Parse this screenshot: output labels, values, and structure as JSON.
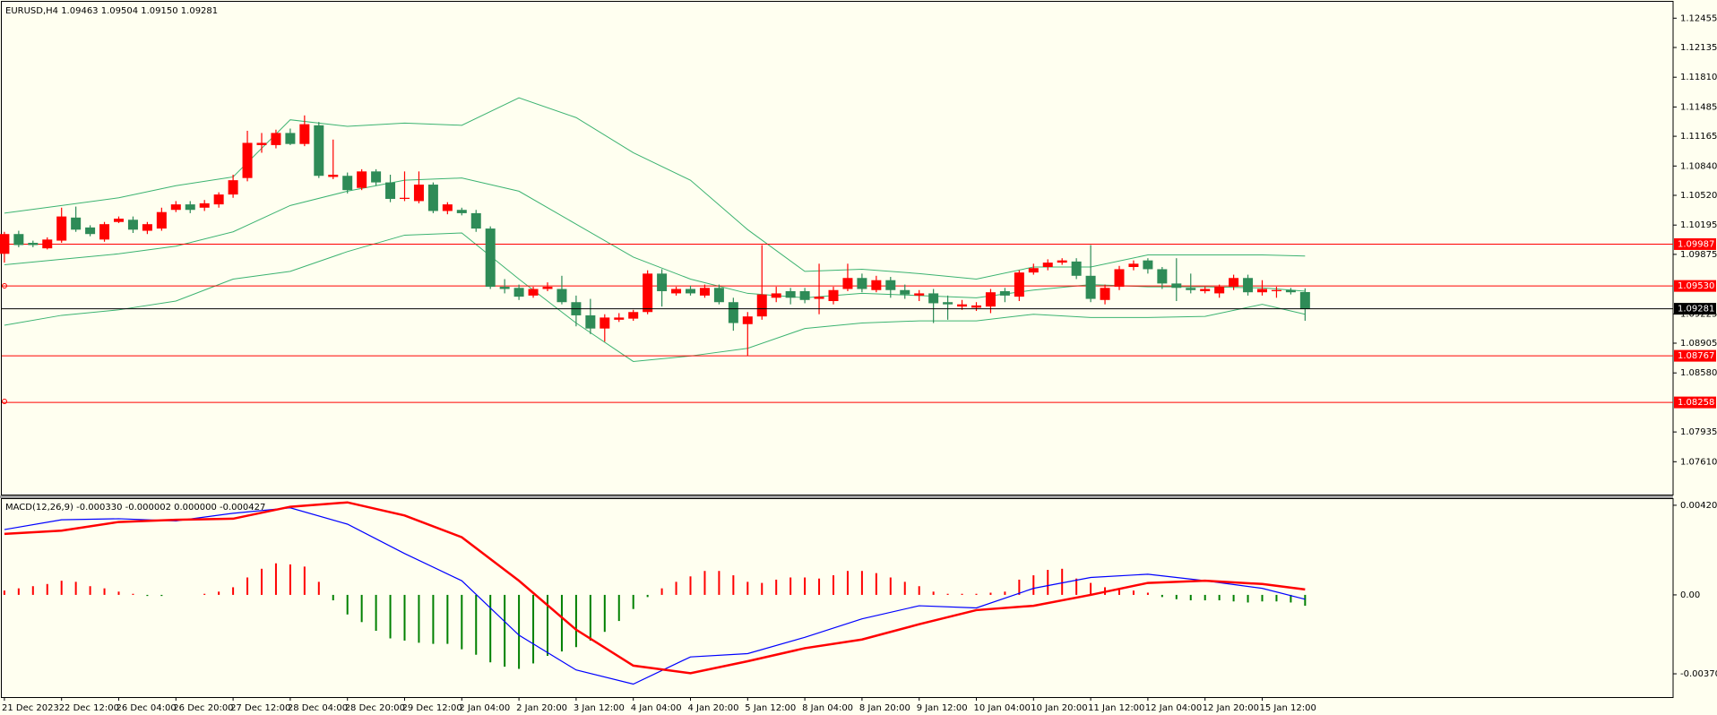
{
  "chart_data": [
    {
      "type": "candlestick",
      "title": "EURUSD,H4  1.09463 1.09504 1.09150 1.09281",
      "open": [
        1.09881,
        1.10097,
        1.10001,
        1.09941,
        1.10025,
        1.10277,
        1.10169,
        1.10037,
        1.10229,
        1.10253,
        1.10133,
        1.10157,
        1.10361,
        1.10421,
        1.10385,
        1.10421,
        1.10529,
        1.10709,
        1.11069,
        1.11069,
        1.11201,
        1.11081,
        1.11285,
        1.10721,
        1.10733,
        1.10601,
        1.10781,
        1.10661,
        1.10481,
        1.10457,
        1.10637,
        1.10349,
        1.10361,
        1.10325,
        1.10157,
        1.09521,
        1.09509,
        1.09425,
        1.09497,
        1.09497,
        1.09353,
        1.09209,
        1.09065,
        1.09161,
        1.09173,
        1.09245,
        1.09665,
        1.09449,
        1.09497,
        1.09425,
        1.09509,
        1.09353,
        1.09113,
        1.09197,
        1.09401,
        1.09473,
        1.09473,
        1.09389,
        1.09365,
        1.09497,
        1.09617,
        1.09485,
        1.09593,
        1.09485,
        1.09425,
        1.09449,
        1.09353,
        1.09305,
        1.09293,
        1.09305,
        1.09473,
        1.09413,
        1.09677,
        1.09737,
        1.09785,
        1.09797,
        1.09641,
        1.09377,
        1.09521,
        1.09737,
        1.09809,
        1.09713,
        1.09557,
        1.09509,
        1.09473,
        1.09449,
        1.09521,
        1.09617,
        1.09461,
        1.09473,
        1.09485,
        1.09463
      ],
      "high": [
        1.10121,
        1.10133,
        1.10025,
        1.10061,
        1.10385,
        1.10397,
        1.10193,
        1.10229,
        1.10289,
        1.10289,
        1.10229,
        1.10385,
        1.10457,
        1.10457,
        1.10469,
        1.10553,
        1.10745,
        1.11225,
        1.11201,
        1.11237,
        1.11249,
        1.11393,
        1.11321,
        1.11129,
        1.10769,
        1.10805,
        1.10805,
        1.10745,
        1.10781,
        1.10781,
        1.10661,
        1.10445,
        1.10385,
        1.10361,
        1.10181,
        1.09605,
        1.09545,
        1.09521,
        1.09569,
        1.09641,
        1.09425,
        1.09389,
        1.09221,
        1.09233,
        1.09269,
        1.09701,
        1.09713,
        1.09521,
        1.09533,
        1.09545,
        1.09545,
        1.09401,
        1.09245,
        1.09977,
        1.09521,
        1.09509,
        1.09509,
        1.09773,
        1.09521,
        1.09773,
        1.09665,
        1.09641,
        1.09629,
        1.09545,
        1.09485,
        1.09497,
        1.09425,
        1.09377,
        1.09353,
        1.09497,
        1.09509,
        1.09701,
        1.09773,
        1.09821,
        1.09833,
        1.09833,
        1.09977,
        1.09545,
        1.09749,
        1.09809,
        1.09833,
        1.09737,
        1.09833,
        1.09665,
        1.09521,
        1.09545,
        1.09653,
        1.09653,
        1.09593,
        1.09521,
        1.09509,
        1.09504
      ],
      "low": [
        1.09785,
        1.09953,
        1.09953,
        1.09929,
        1.10001,
        1.10121,
        1.10073,
        1.10013,
        1.10217,
        1.10109,
        1.10097,
        1.10133,
        1.10337,
        1.10325,
        1.10349,
        1.10385,
        1.10493,
        1.10673,
        1.10985,
        1.11033,
        1.11069,
        1.11057,
        1.10709,
        1.10697,
        1.10541,
        1.10577,
        1.10625,
        1.10445,
        1.10457,
        1.10433,
        1.10325,
        1.10313,
        1.10301,
        1.10121,
        1.09497,
        1.09449,
        1.09377,
        1.09401,
        1.09473,
        1.09329,
        1.09089,
        1.09005,
        1.08921,
        1.09137,
        1.09149,
        1.09221,
        1.09305,
        1.09425,
        1.09425,
        1.09401,
        1.09329,
        1.09041,
        1.08765,
        1.09161,
        1.09353,
        1.09329,
        1.09341,
        1.09221,
        1.09329,
        1.09473,
        1.09461,
        1.09461,
        1.09401,
        1.09389,
        1.09365,
        1.09125,
        1.09161,
        1.09269,
        1.09257,
        1.09233,
        1.09353,
        1.09365,
        1.09653,
        1.09701,
        1.09761,
        1.09605,
        1.09353,
        1.09329,
        1.09485,
        1.09701,
        1.09665,
        1.09497,
        1.09365,
        1.09449,
        1.09449,
        1.09401,
        1.09485,
        1.09425,
        1.09425,
        1.09401,
        1.09437,
        1.0915
      ],
      "close": [
        1.10097,
        1.09977,
        1.09977,
        1.10037,
        1.10289,
        1.10145,
        1.10097,
        1.10205,
        1.10265,
        1.10145,
        1.10205,
        1.10337,
        1.10421,
        1.10361,
        1.10433,
        1.10529,
        1.10685,
        1.11093,
        1.11093,
        1.11201,
        1.11081,
        1.11297,
        1.10733,
        1.10745,
        1.10577,
        1.10781,
        1.10661,
        1.10481,
        1.10493,
        1.10637,
        1.10349,
        1.10421,
        1.10325,
        1.10157,
        1.09521,
        1.09497,
        1.09413,
        1.09497,
        1.09521,
        1.09353,
        1.09209,
        1.09065,
        1.09185,
        1.09185,
        1.09245,
        1.09665,
        1.09473,
        1.09497,
        1.09449,
        1.09509,
        1.09353,
        1.09125,
        1.09197,
        1.09437,
        1.09449,
        1.09401,
        1.09377,
        1.09413,
        1.09485,
        1.09617,
        1.09497,
        1.09593,
        1.09485,
        1.09437,
        1.09449,
        1.09341,
        1.09329,
        1.09329,
        1.09317,
        1.09461,
        1.09425,
        1.09677,
        1.09725,
        1.09785,
        1.09809,
        1.09641,
        1.09389,
        1.09509,
        1.09713,
        1.09773,
        1.09713,
        1.09557,
        1.09509,
        1.09485,
        1.09497,
        1.09521,
        1.09617,
        1.09461,
        1.09497,
        1.09485,
        1.09461,
        1.09281
      ],
      "up_color": "#ff0000",
      "down_color": "#2e8b57",
      "bands": {
        "x": [
          0,
          4,
          8,
          12,
          16,
          20,
          24,
          28,
          32,
          36,
          40,
          44,
          48,
          52,
          56,
          60,
          64,
          68,
          72,
          76,
          80,
          84,
          88,
          91
        ],
        "upper": [
          1.10325,
          1.10409,
          1.10493,
          1.10625,
          1.10721,
          1.11345,
          1.11273,
          1.11309,
          1.11285,
          1.11585,
          1.11369,
          1.10985,
          1.10685,
          1.10145,
          1.09689,
          1.09713,
          1.09665,
          1.09605,
          1.09737,
          1.09737,
          1.09869,
          1.09869,
          1.09869,
          1.09857
        ],
        "middle": [
          1.09761,
          1.09821,
          1.09881,
          1.09965,
          1.10121,
          1.10409,
          1.10565,
          1.10685,
          1.10709,
          1.10565,
          1.10205,
          1.09845,
          1.09605,
          1.09449,
          1.09401,
          1.09449,
          1.09425,
          1.09401,
          1.09485,
          1.09545,
          1.09521,
          1.09521,
          1.09509,
          1.09473
        ],
        "lower": [
          1.09101,
          1.09209,
          1.09269,
          1.09365,
          1.09605,
          1.09689,
          1.09905,
          1.10085,
          1.10109,
          1.09605,
          1.09125,
          1.08705,
          1.08765,
          1.08849,
          1.09065,
          1.09125,
          1.09149,
          1.09149,
          1.09221,
          1.09185,
          1.09185,
          1.09197,
          1.09329,
          1.09221
        ],
        "color": "#3cb371"
      },
      "levels": [
        1.09987,
        {
          "value": 1.0953,
          "label": "1.09530"
        },
        1.08767,
        1.08258
      ],
      "level_color": "#ff0000",
      "ylim": [
        1.07251,
        1.12634
      ],
      "yticks": [
        1.12455,
        1.12135,
        {
          "value": 1.1181,
          "label": "1.11810"
        },
        1.11485,
        1.11165,
        {
          "value": 1.1084,
          "label": "1.10840"
        },
        {
          "value": 1.1052,
          "label": "1.10520"
        },
        1.10195,
        1.09875,
        1.09225,
        1.08905,
        {
          "value": 1.0858,
          "label": "1.08580"
        },
        1.07935,
        {
          "value": 1.0761,
          "label": "1.07610"
        }
      ]
    },
    {
      "type": "macd",
      "label": "MACD(12,26,9) -0.000330 -0.000002 0.000000 -0.000427",
      "categories": [
        "21 Dec 2023",
        null,
        null,
        null,
        "22 Dec 12:00",
        null,
        null,
        null,
        "26 Dec 04:00",
        null,
        null,
        null,
        "26 Dec 20:00",
        null,
        null,
        null,
        "27 Dec 12:00",
        null,
        null,
        null,
        "28 Dec 04:00",
        null,
        null,
        null,
        "28 Dec 20:00",
        null,
        null,
        null,
        "29 Dec 12:00",
        null,
        null,
        null,
        "2 Jan 04:00",
        null,
        null,
        null,
        "2 Jan 20:00",
        null,
        null,
        null,
        "3 Jan 12:00",
        null,
        null,
        null,
        "4 Jan 04:00",
        null,
        null,
        null,
        "4 Jan 20:00",
        null,
        null,
        null,
        "5 Jan 12:00",
        null,
        null,
        null,
        "8 Jan 04:00",
        null,
        null,
        null,
        "8 Jan 20:00",
        null,
        null,
        null,
        "9 Jan 12:00",
        null,
        null,
        null,
        "10 Jan 04:00",
        null,
        null,
        null,
        "10 Jan 20:00",
        null,
        null,
        null,
        "11 Jan 12:00",
        null,
        null,
        null,
        "12 Jan 04:00",
        null,
        null,
        null,
        "12 Jan 20:00",
        null,
        null,
        null,
        "15 Jan 12:00",
        null,
        null,
        null
      ],
      "histogram": [
        0.000204,
        0.000307,
        0.000409,
        0.000511,
        0.000664,
        0.000613,
        0.000409,
        0.000307,
        0.000153,
        5.1e-05,
        -5.1e-05,
        -5.1e-05,
        0,
        0,
        5.1e-05,
        0.000153,
        0.000358,
        0.000818,
        0.001226,
        0.001482,
        0.001431,
        0.001329,
        0.000613,
        -0.000256,
        -0.00092,
        -0.001278,
        -0.001686,
        -0.002044,
        -0.002146,
        -0.002248,
        -0.0023,
        -0.0023,
        -0.002555,
        -0.002811,
        -0.003168,
        -0.003373,
        -0.003475,
        -0.003219,
        -0.002862,
        -0.002657,
        -0.002453,
        -0.002146,
        -0.001737,
        -0.001226,
        -0.000664,
        -0.000102,
        0.000307,
        0.000613,
        0.000869,
        0.001124,
        0.001124,
        0.00092,
        0.000613,
        0.000562,
        0.000715,
        0.000818,
        0.000818,
        0.000767,
        0.00092,
        0.001124,
        0.001124,
        0.001022,
        0.000818,
        0.000613,
        0.000409,
        0.000153,
        5.1e-05,
        5.1e-05,
        5.1e-05,
        0.000102,
        0.000153,
        0.000715,
        0.00092,
        0.001175,
        0.001226,
        0.000767,
        0.000562,
        0.000358,
        0.000307,
        0.000204,
        0.000102,
        -0.000102,
        -0.000204,
        -0.000256,
        -0.000256,
        -0.000256,
        -0.000307,
        -0.000358,
        -0.000307,
        -0.000307,
        -0.000358,
        -0.000511
      ],
      "up_color": "#ff0000",
      "down_color": "#008000",
      "x": [
        0,
        4,
        8,
        12,
        16,
        20,
        24,
        28,
        32,
        36,
        40,
        44,
        48,
        52,
        56,
        60,
        64,
        68,
        72,
        76,
        80,
        84,
        88,
        91
      ],
      "series": [
        {
          "color": "#0000ff",
          "values": [
            0.003066,
            0.003526,
            0.003577,
            0.003475,
            0.003833,
            0.004088,
            0.003322,
            0.001942,
            0.000664,
            -0.001891,
            -0.003526,
            -0.00419,
            -0.002913,
            -0.002759,
            -0.001993,
            -0.001124,
            -0.000511,
            -0.000613,
            0.000307,
            0.000818,
            0.000971,
            0.000664,
            0.000307,
            -0.000204
          ]
        },
        {
          "color": "#ff0000",
          "values": [
            0.002862,
            0.003015,
            0.003424,
            0.003526,
            0.003577,
            0.004139,
            0.004344,
            0.00373,
            0.002708,
            0.000664,
            -0.001635,
            -0.003322,
            -0.003679,
            -0.003117,
            -0.002504,
            -0.002095,
            -0.00138,
            -0.000715,
            -0.000511,
            0,
            0.000562,
            0.000664,
            0.000511,
            0.000256
          ]
        }
      ],
      "ylim": [
        -0.0048,
        0.0045
      ],
      "yticks": [
        0.004209,
        {
          "value": 0,
          "label": "0.00"
        },
        -0.003707
      ]
    }
  ]
}
